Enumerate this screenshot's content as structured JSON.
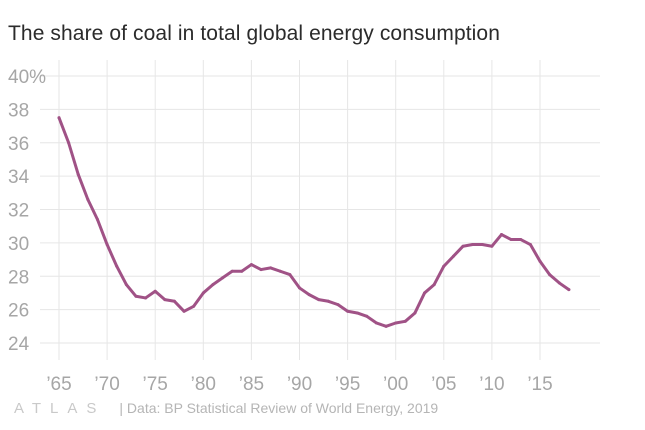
{
  "chart_data": {
    "type": "line",
    "title": "The share of coal in total global energy consumption",
    "xlabel": "",
    "ylabel": "",
    "xlim": [
      1962,
      2020
    ],
    "ylim": [
      22.5,
      40.5
    ],
    "yticks": [
      24,
      26,
      28,
      30,
      32,
      34,
      36,
      38,
      40
    ],
    "ytick_labels": [
      "24",
      "26",
      "28",
      "30",
      "32",
      "34",
      "36",
      "38",
      "40%"
    ],
    "xticks": [
      1965,
      1970,
      1975,
      1980,
      1985,
      1990,
      1995,
      2000,
      2005,
      2010,
      2015
    ],
    "xtick_labels": [
      "’65",
      "’70",
      "’75",
      "’80",
      "’85",
      "’90",
      "’95",
      "’00",
      "’05",
      "’10",
      "’15"
    ],
    "grid": true,
    "series": [
      {
        "name": "Coal share of global energy consumption",
        "color": "#a05286",
        "x": [
          1965,
          1966,
          1967,
          1968,
          1969,
          1970,
          1971,
          1972,
          1973,
          1974,
          1975,
          1976,
          1977,
          1978,
          1979,
          1980,
          1981,
          1982,
          1983,
          1984,
          1985,
          1986,
          1987,
          1988,
          1989,
          1990,
          1991,
          1992,
          1993,
          1994,
          1995,
          1996,
          1997,
          1998,
          1999,
          2000,
          2001,
          2002,
          2003,
          2004,
          2005,
          2006,
          2007,
          2008,
          2009,
          2010,
          2011,
          2012,
          2013,
          2014,
          2015,
          2016,
          2017,
          2018
        ],
        "values": [
          37.5,
          36.0,
          34.1,
          32.6,
          31.4,
          29.9,
          28.6,
          27.5,
          26.8,
          26.7,
          27.1,
          26.6,
          26.5,
          25.9,
          26.2,
          27.0,
          27.5,
          27.9,
          28.3,
          28.3,
          28.7,
          28.4,
          28.5,
          28.3,
          28.1,
          27.3,
          26.9,
          26.6,
          26.5,
          26.3,
          25.9,
          25.8,
          25.6,
          25.2,
          25.0,
          25.2,
          25.3,
          25.8,
          27.0,
          27.5,
          28.6,
          29.2,
          29.8,
          29.9,
          29.9,
          29.8,
          30.5,
          30.2,
          30.2,
          29.9,
          28.9,
          28.1,
          27.6,
          27.2
        ]
      }
    ]
  },
  "footer": {
    "brand": "ATLAS",
    "source": "| Data: BP Statistical Review of World Energy, 2019"
  },
  "colors": {
    "line": "#a05286",
    "grid": "#e6e6e6",
    "tick_label": "#a6a6a6",
    "title": "#2b2b2b"
  }
}
